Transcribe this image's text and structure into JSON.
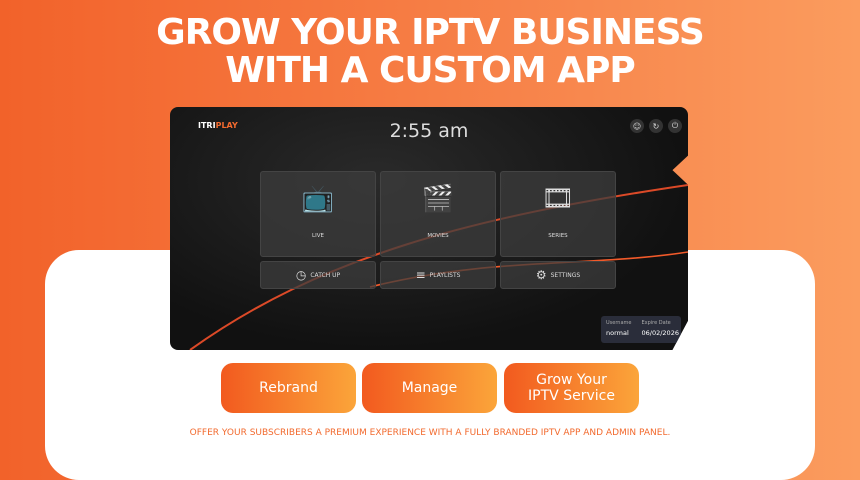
{
  "headline": {
    "line1": "GROW YOUR IPTV  BUSINESS",
    "line2": "WITH A CUSTOM APP"
  },
  "app": {
    "logo_itri": "ITRI",
    "logo_play": "PLAY",
    "clock": "2:55 am",
    "tiles": [
      {
        "label": "LIVE",
        "icon": "tv-icon"
      },
      {
        "label": "MOVIES",
        "icon": "clapperboard-icon"
      },
      {
        "label": "SERIES",
        "icon": "film-stack-icon"
      }
    ],
    "small_tiles": [
      {
        "label": "CATCH UP",
        "icon": "clock-icon"
      },
      {
        "label": "PLAYLISTS",
        "icon": "playlist-add-icon"
      },
      {
        "label": "SETTINGS",
        "icon": "gear-icon"
      }
    ],
    "account": {
      "username_label": "Username",
      "username": "normal",
      "expire_label": "Expire Date",
      "expire": "06/02/2026"
    }
  },
  "buttons": {
    "rebrand": "Rebrand",
    "manage": "Manage",
    "grow_line1": "Grow Your",
    "grow_line2": "IPTV Service"
  },
  "footer": "OFFER YOUR SUBSCRIBERS A PREMIUM EXPERIENCE WITH A FULLY BRANDED IPTV APP AND ADMIN PANEL.",
  "colors": {
    "accent": "#f26a2e",
    "button_end": "#fba53a"
  }
}
